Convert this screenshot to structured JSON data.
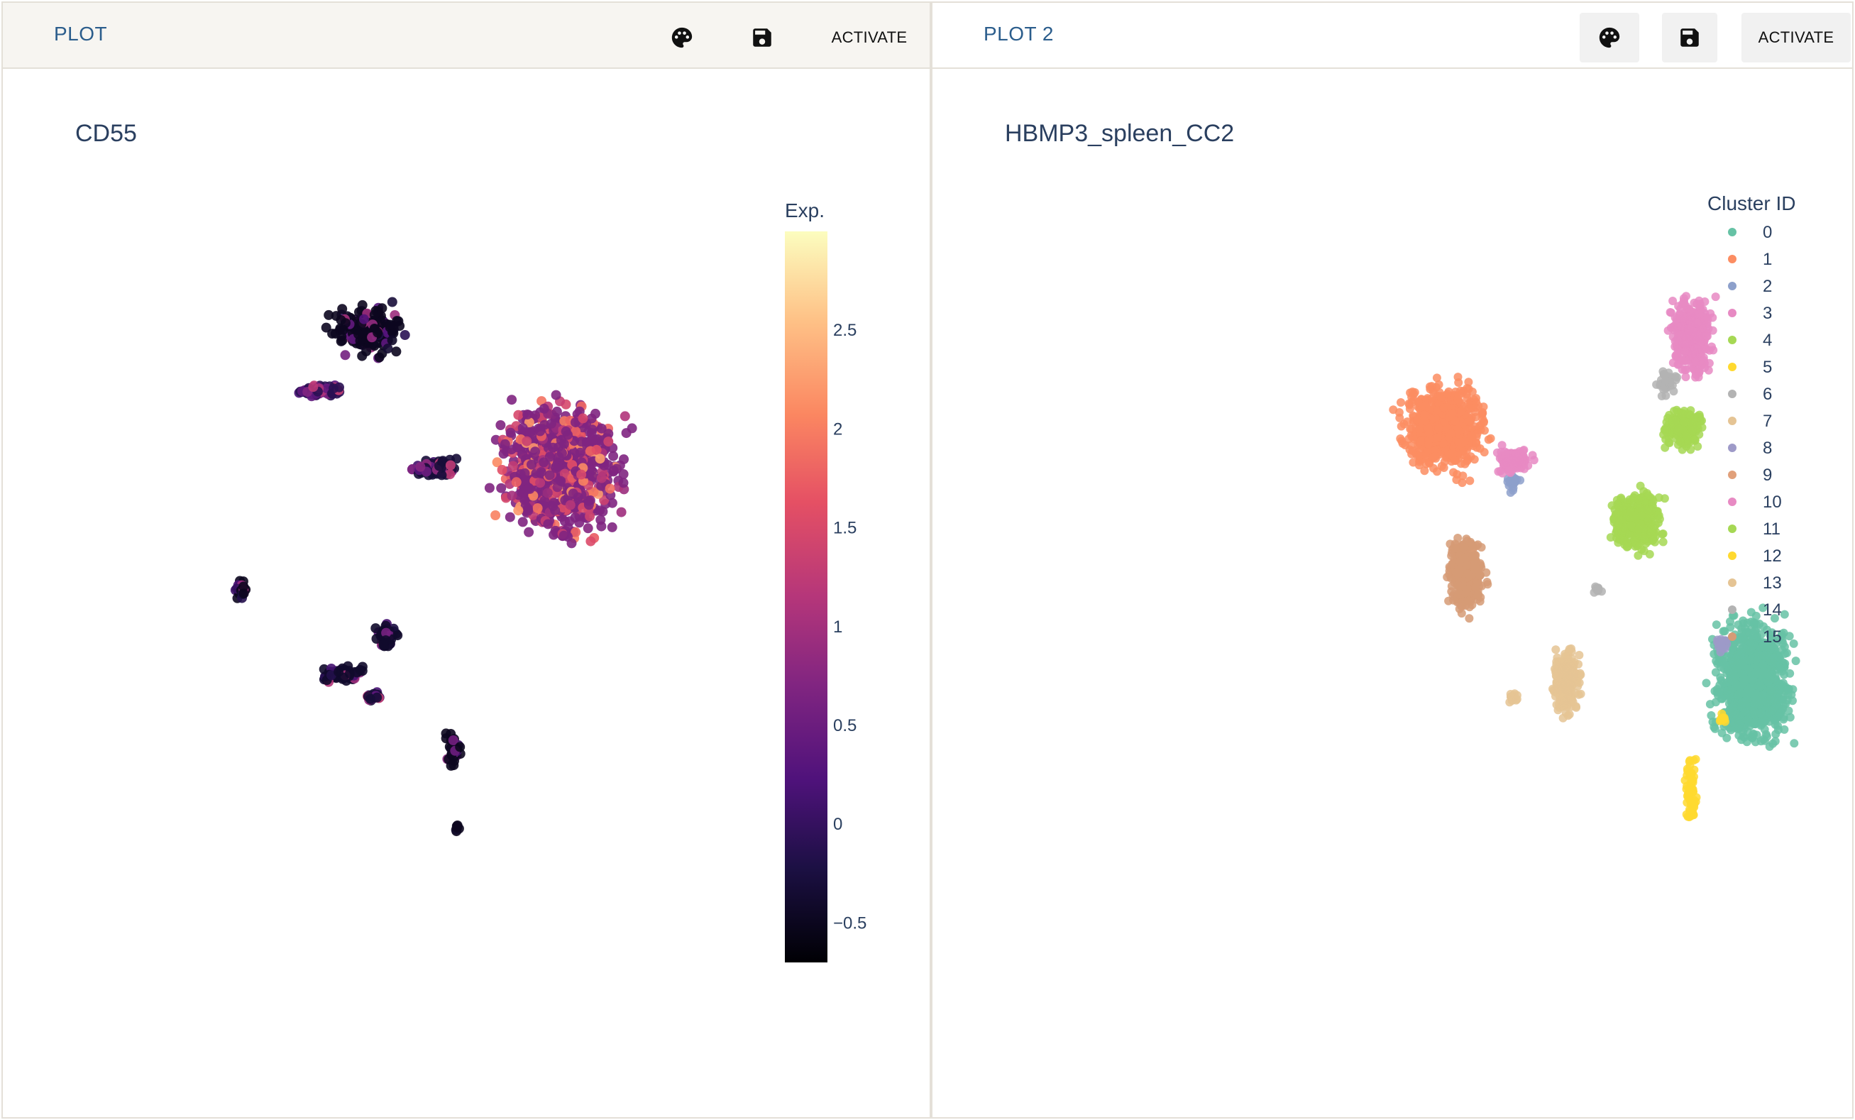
{
  "panels": [
    {
      "toolbar": {
        "title": "PLOT",
        "palette_icon": "palette-icon",
        "save_icon": "save-icon",
        "activate_label": "ACTIVATE"
      },
      "plot_title": "CD55",
      "colorbar": {
        "title": "Exp.",
        "ticks": [
          "2.5",
          "2",
          "1.5",
          "1",
          "0.5",
          "0",
          "−0.5"
        ]
      }
    },
    {
      "toolbar": {
        "title": "PLOT 2",
        "palette_icon": "palette-icon",
        "save_icon": "save-icon",
        "activate_label": "ACTIVATE"
      },
      "plot_title": "HBMP3_spleen_CC2",
      "legend": {
        "title": "Cluster ID"
      }
    }
  ],
  "chart_data": [
    {
      "type": "scatter",
      "title": "CD55",
      "colorscale": "magma",
      "color_range": [
        -0.7,
        3.0
      ],
      "colorbar_title": "Exp.",
      "colorbar_ticks": [
        2.5,
        2,
        1.5,
        1,
        0.5,
        0,
        -0.5
      ],
      "axes_visible": false,
      "grid": false,
      "clusters": [
        {
          "x": 0.37,
          "y": 0.81,
          "expression": -0.5
        },
        {
          "x": 0.29,
          "y": 0.73,
          "expression": -0.1
        },
        {
          "x": 0.48,
          "y": 0.63,
          "expression": -0.3
        },
        {
          "x": 0.69,
          "y": 0.63,
          "expression": 0.7
        },
        {
          "x": 0.16,
          "y": 0.47,
          "expression": -0.5
        },
        {
          "x": 0.4,
          "y": 0.41,
          "expression": -0.4
        },
        {
          "x": 0.33,
          "y": 0.36,
          "expression": -0.4
        },
        {
          "x": 0.38,
          "y": 0.33,
          "expression": -0.3
        },
        {
          "x": 0.51,
          "y": 0.26,
          "expression": -0.5
        },
        {
          "x": 0.52,
          "y": 0.16,
          "expression": -0.5
        }
      ]
    },
    {
      "type": "scatter",
      "title": "HBMP3_spleen_CC2",
      "legend_title": "Cluster ID",
      "legend_position": "right",
      "axes_visible": false,
      "grid": false,
      "series": [
        {
          "name": "0",
          "color": "#66c2a5",
          "x": 1.36,
          "y": 0.35
        },
        {
          "name": "1",
          "color": "#fc8d62",
          "x": 0.96,
          "y": 0.68
        },
        {
          "name": "2",
          "color": "#8da0cb",
          "x": 1.05,
          "y": 0.61
        },
        {
          "name": "3",
          "color": "#e78ac3",
          "x": 1.28,
          "y": 0.8
        },
        {
          "name": "4",
          "color": "#a6d854",
          "x": 1.21,
          "y": 0.56
        },
        {
          "name": "5",
          "color": "#ffd92f",
          "x": 1.28,
          "y": 0.21
        },
        {
          "name": "6",
          "color": "#b3b3b3",
          "x": 1.25,
          "y": 0.74
        },
        {
          "name": "7",
          "color": "#e5c494",
          "x": 1.12,
          "y": 0.35
        },
        {
          "name": "8",
          "color": "#9e9ac8",
          "x": 1.32,
          "y": 0.4
        },
        {
          "name": "9",
          "color": "#e1a07a",
          "x": 0.99,
          "y": 0.52
        },
        {
          "name": "10",
          "color": "#e78ac3",
          "x": 1.05,
          "y": 0.64
        },
        {
          "name": "11",
          "color": "#a6d854",
          "x": 1.27,
          "y": 0.68
        },
        {
          "name": "12",
          "color": "#ffd92f",
          "x": 1.32,
          "y": 0.3
        },
        {
          "name": "13",
          "color": "#e5c494",
          "x": 1.05,
          "y": 0.33
        },
        {
          "name": "14",
          "color": "#b3b3b3",
          "x": 1.16,
          "y": 0.47
        },
        {
          "name": "15",
          "color": "#d69b76",
          "x": 0.99,
          "y": 0.49
        }
      ]
    }
  ]
}
